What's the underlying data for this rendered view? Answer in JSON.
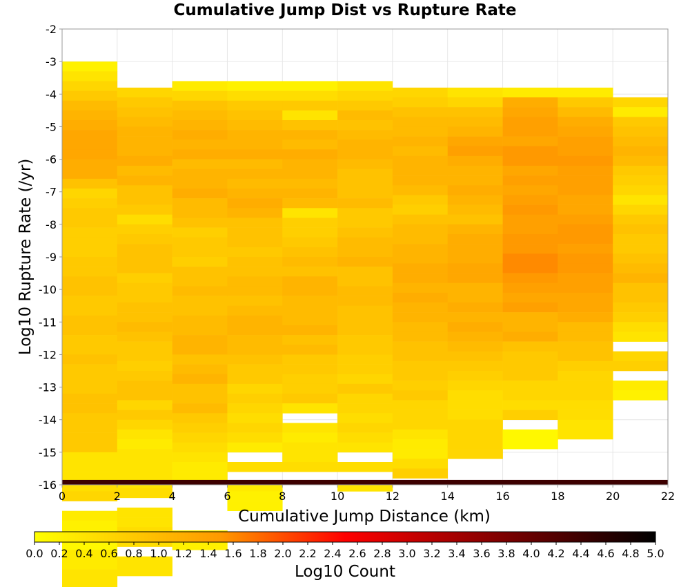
{
  "chart_data": {
    "type": "heatmap",
    "title": "Cumulative Jump Dist vs Rupture Rate",
    "xlabel": "Cumulative Jump Distance (km)",
    "ylabel": "Log10 Rupture Rate (/yr)",
    "xlim": [
      0,
      22
    ],
    "ylim": [
      -16,
      -2
    ],
    "x_ticks": [
      "0",
      "2",
      "4",
      "6",
      "8",
      "10",
      "12",
      "14",
      "16",
      "18",
      "20",
      "22"
    ],
    "y_ticks": [
      "-2",
      "-3",
      "-4",
      "-5",
      "-6",
      "-7",
      "-8",
      "-9",
      "-10",
      "-11",
      "-12",
      "-13",
      "-14",
      "-15",
      "-16"
    ],
    "colorbar": {
      "label": "Log10 Count",
      "range": [
        0,
        5
      ],
      "ticks": [
        "0.0",
        "0.2",
        "0.4",
        "0.6",
        "0.8",
        "1.0",
        "1.2",
        "1.4",
        "1.6",
        "1.8",
        "2.0",
        "2.2",
        "2.4",
        "2.6",
        "2.8",
        "3.0",
        "3.2",
        "3.4",
        "3.6",
        "3.8",
        "4.0",
        "4.2",
        "4.4",
        "4.6",
        "4.8",
        "5.0"
      ],
      "colors": [
        "#ffff00",
        "#ff9900",
        "#ff0000",
        "#990000",
        "#000000"
      ]
    },
    "grid": true,
    "x_bin_width": 2,
    "y_bin_height": 0.3,
    "columns": [
      {
        "x_start": 0,
        "y_bins_top": -3.0,
        "values": [
          0.2,
          0.4,
          0.6,
          0.8,
          1.0,
          1.1,
          1.2,
          1.3,
          1.3,
          1.3,
          1.2,
          1.2,
          0.9,
          0.6,
          0.7,
          0.8,
          0.8,
          0.7,
          0.7,
          0.7,
          0.8,
          0.8,
          0.9,
          0.9,
          0.8,
          0.8,
          0.9,
          0.9,
          0.8,
          0.8,
          0.9,
          0.8,
          0.8,
          0.8,
          0.9,
          0.9,
          0.8,
          0.8,
          0.8,
          0.8,
          0.4,
          0.4,
          0.4,
          0.5,
          0.6,
          null,
          0.3,
          0.2,
          0.1,
          0.1,
          0.3,
          0.3,
          0.4,
          0.4
        ]
      },
      {
        "x_start": 2,
        "y_bins_top": -3.8,
        "values": [
          0.6,
          0.8,
          0.9,
          1.0,
          1.1,
          1.1,
          1.1,
          1.2,
          1.0,
          1.1,
          0.9,
          0.9,
          0.8,
          0.5,
          0.7,
          0.8,
          0.9,
          0.9,
          0.9,
          0.7,
          0.8,
          0.8,
          0.9,
          0.9,
          1.0,
          0.9,
          0.8,
          0.8,
          0.7,
          0.8,
          0.9,
          0.9,
          0.6,
          0.8,
          0.6,
          0.4,
          0.3,
          0.4,
          0.4,
          0.4,
          0.4,
          0.5,
          null,
          0.4,
          0.4,
          0.5,
          0.5,
          null,
          0.4,
          0.4
        ]
      },
      {
        "x_start": 4,
        "y_bins_top": -3.6,
        "values": [
          0.3,
          0.6,
          0.9,
          1.0,
          1.1,
          1.2,
          1.1,
          1.2,
          1.0,
          1.1,
          1.1,
          1.2,
          1.0,
          1.0,
          0.9,
          0.7,
          0.8,
          0.8,
          0.7,
          0.9,
          0.9,
          1.0,
          0.9,
          0.9,
          1.0,
          1.0,
          1.1,
          1.1,
          0.9,
          1.0,
          1.1,
          0.9,
          0.9,
          1.0,
          0.8,
          0.7,
          0.6,
          0.5,
          0.4,
          0.3,
          0.3,
          null,
          null,
          null,
          null,
          null,
          0.2,
          0.2
        ]
      },
      {
        "x_start": 6,
        "y_bins_top": -3.6,
        "values": [
          0.2,
          0.5,
          0.8,
          0.9,
          1.0,
          1.1,
          1.1,
          1.2,
          1.0,
          1.1,
          1.0,
          1.1,
          1.2,
          1.1,
          0.9,
          0.9,
          0.9,
          0.8,
          0.9,
          0.9,
          1.0,
          1.0,
          0.9,
          1.0,
          1.1,
          1.1,
          1.0,
          1.0,
          0.9,
          0.8,
          0.8,
          0.6,
          0.7,
          0.6,
          0.5,
          0.6,
          0.5,
          0.3,
          null,
          0.5,
          null,
          0.3,
          0.2,
          0.2
        ]
      },
      {
        "x_start": 8,
        "y_bins_top": -3.6,
        "values": [
          0.2,
          0.5,
          0.8,
          0.4,
          0.9,
          1.1,
          1.0,
          1.2,
          1.1,
          1.1,
          1.0,
          1.1,
          1.0,
          0.4,
          0.7,
          0.7,
          0.8,
          0.9,
          1.0,
          0.9,
          1.1,
          1.1,
          1.0,
          1.0,
          1.0,
          1.1,
          0.9,
          1.0,
          0.8,
          0.8,
          0.7,
          0.7,
          0.8,
          0.4,
          null,
          0.4,
          0.3,
          0.4,
          0.4,
          0.5
        ]
      },
      {
        "x_start": 10,
        "y_bins_top": -3.6,
        "values": [
          0.4,
          0.6,
          0.8,
          1.0,
          0.9,
          1.0,
          1.1,
          1.1,
          1.0,
          0.9,
          0.9,
          0.9,
          1.0,
          0.8,
          0.8,
          0.9,
          1.0,
          1.0,
          1.1,
          0.9,
          0.9,
          1.0,
          1.0,
          0.9,
          0.9,
          0.9,
          0.8,
          0.8,
          0.7,
          0.7,
          0.6,
          0.8,
          0.6,
          0.6,
          0.5,
          0.6,
          0.5,
          0.4,
          null,
          0.5,
          null,
          0.4
        ]
      },
      {
        "x_start": 12,
        "y_bins_top": -3.8,
        "values": [
          0.6,
          0.7,
          0.9,
          1.0,
          1.0,
          1.1,
          1.0,
          1.1,
          1.1,
          1.1,
          1.0,
          0.8,
          0.7,
          0.9,
          1.0,
          1.0,
          1.1,
          1.1,
          1.2,
          1.2,
          1.1,
          1.2,
          1.1,
          1.1,
          1.0,
          1.0,
          0.9,
          0.9,
          0.8,
          0.8,
          0.7,
          0.8,
          0.6,
          0.6,
          0.6,
          0.4,
          0.3,
          0.3,
          0.5,
          0.7
        ]
      },
      {
        "x_start": 14,
        "y_bins_top": -3.8,
        "values": [
          0.4,
          0.6,
          0.9,
          1.0,
          1.1,
          1.3,
          1.4,
          1.2,
          1.1,
          1.1,
          1.2,
          1.1,
          1.0,
          0.9,
          1.1,
          1.2,
          1.2,
          1.2,
          1.3,
          1.3,
          1.1,
          1.1,
          1.2,
          1.1,
          1.2,
          1.1,
          1.0,
          0.9,
          0.8,
          0.7,
          0.6,
          0.5,
          0.5,
          0.5,
          0.6,
          0.6,
          0.6,
          0.6
        ]
      },
      {
        "x_start": 16,
        "y_bins_top": -3.8,
        "values": [
          0.3,
          1.2,
          1.3,
          1.4,
          1.4,
          1.3,
          1.5,
          1.5,
          1.3,
          1.4,
          1.3,
          1.4,
          1.5,
          1.4,
          1.4,
          1.5,
          1.5,
          1.6,
          1.6,
          1.5,
          1.4,
          1.3,
          1.4,
          1.1,
          1.1,
          1.2,
          0.9,
          0.8,
          0.8,
          0.8,
          0.6,
          0.6,
          0.5,
          0.7,
          null,
          0.1,
          0.1
        ]
      },
      {
        "x_start": 18,
        "y_bins_top": -3.8,
        "values": [
          0.3,
          0.8,
          1.0,
          1.2,
          1.3,
          1.4,
          1.4,
          1.5,
          1.4,
          1.4,
          1.4,
          1.3,
          1.3,
          1.4,
          1.5,
          1.5,
          1.4,
          1.5,
          1.5,
          1.4,
          1.4,
          1.3,
          1.3,
          1.2,
          1.0,
          1.0,
          0.9,
          0.9,
          0.7,
          0.6,
          0.6,
          0.6,
          0.5,
          0.5,
          0.4,
          0.4
        ]
      },
      {
        "x_start": 20,
        "y_bins_top": -4.1,
        "values": [
          0.6,
          0.3,
          0.8,
          0.9,
          1.0,
          1.1,
          1.0,
          0.8,
          0.7,
          0.6,
          0.4,
          0.6,
          0.8,
          0.9,
          0.8,
          0.8,
          0.9,
          1.0,
          1.1,
          0.9,
          0.9,
          0.8,
          0.7,
          0.5,
          0.4,
          null,
          0.6,
          0.7,
          null,
          0.3,
          0.2
        ]
      }
    ],
    "bottom_row": {
      "y": -16,
      "value": 4.4
    }
  }
}
